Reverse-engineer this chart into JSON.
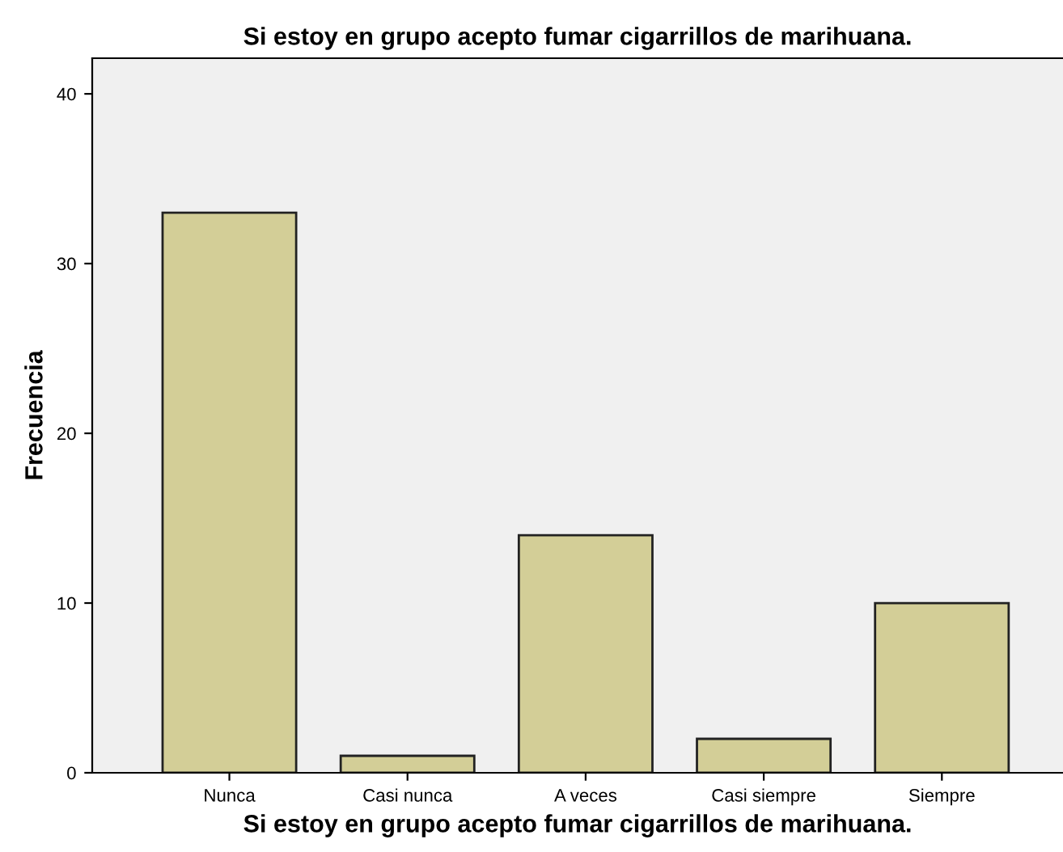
{
  "chart_data": {
    "type": "bar",
    "title": "Si estoy en grupo acepto fumar cigarrillos de marihuana.",
    "xlabel": "Si estoy en grupo acepto fumar cigarrillos de marihuana.",
    "ylabel": "Frecuencia",
    "categories": [
      "Nunca",
      "Casi nunca",
      "A veces",
      "Casi siempre",
      "Siempre"
    ],
    "values": [
      33,
      1,
      14,
      2,
      10
    ],
    "color": "#d3ce97",
    "ylim": [
      0,
      42.1
    ],
    "yticks": [
      0,
      10,
      20,
      30,
      40
    ],
    "grid": false
  }
}
